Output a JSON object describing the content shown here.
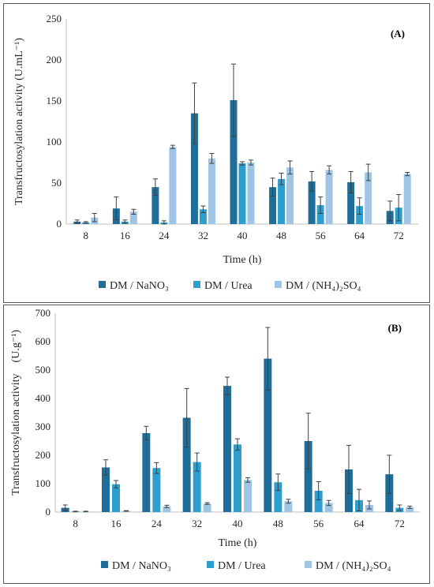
{
  "colors": {
    "series1": "#1f6e99",
    "series2": "#2c9fcf",
    "series3": "#9ec5e6"
  },
  "chart_data": [
    {
      "type": "bar",
      "panel_label": "(A)",
      "xlabel": "Time (h)",
      "ylabel": "Transfructosylation activity (U.mL⁻¹)",
      "categories": [
        "8",
        "16",
        "24",
        "32",
        "40",
        "48",
        "56",
        "64",
        "72"
      ],
      "ylim": [
        0,
        250
      ],
      "yticks": [
        "0",
        "50",
        "100",
        "150",
        "200",
        "250"
      ],
      "grid": false,
      "legend_position": "bottom",
      "series": [
        {
          "name": "DM / NaNO₃",
          "values": [
            3,
            19,
            45,
            135,
            151,
            45,
            52,
            51,
            16
          ],
          "errors": [
            2,
            14,
            10,
            37,
            44,
            11,
            12,
            13,
            12
          ]
        },
        {
          "name": "DM / Urea",
          "values": [
            2,
            3,
            2,
            18,
            74,
            55,
            23,
            22,
            20
          ],
          "errors": [
            1,
            2,
            2,
            4,
            2,
            7,
            10,
            10,
            16
          ]
        },
        {
          "name": "DM / (NH₄)₂SO₄",
          "values": [
            8,
            15,
            94,
            80,
            75,
            69,
            66,
            63,
            61
          ],
          "errors": [
            5,
            3,
            2,
            6,
            3,
            8,
            5,
            10,
            2
          ]
        }
      ]
    },
    {
      "type": "bar",
      "panel_label": "(B)",
      "xlabel": "Time (h)",
      "ylabel": "Transfructosylation activity    (U.g⁻¹)",
      "categories": [
        "8",
        "16",
        "24",
        "32",
        "40",
        "48",
        "56",
        "64",
        "72"
      ],
      "ylim": [
        0,
        700
      ],
      "yticks": [
        "0",
        "100",
        "200",
        "300",
        "400",
        "500",
        "600",
        "700"
      ],
      "grid": false,
      "legend_position": "bottom",
      "series": [
        {
          "name": "DM / NaNO₃",
          "values": [
            15,
            157,
            278,
            332,
            444,
            540,
            250,
            150,
            133
          ],
          "errors": [
            10,
            27,
            24,
            103,
            31,
            110,
            98,
            85,
            67
          ]
        },
        {
          "name": "DM / Urea",
          "values": [
            2,
            98,
            155,
            176,
            238,
            105,
            75,
            42,
            15
          ],
          "errors": [
            1,
            13,
            19,
            32,
            20,
            29,
            32,
            38,
            10
          ]
        },
        {
          "name": "DM / (NH₄)₂SO₄",
          "values": [
            2,
            4,
            20,
            30,
            113,
            38,
            32,
            25,
            17
          ],
          "errors": [
            1,
            1,
            4,
            3,
            8,
            7,
            9,
            14,
            4
          ]
        }
      ]
    }
  ]
}
